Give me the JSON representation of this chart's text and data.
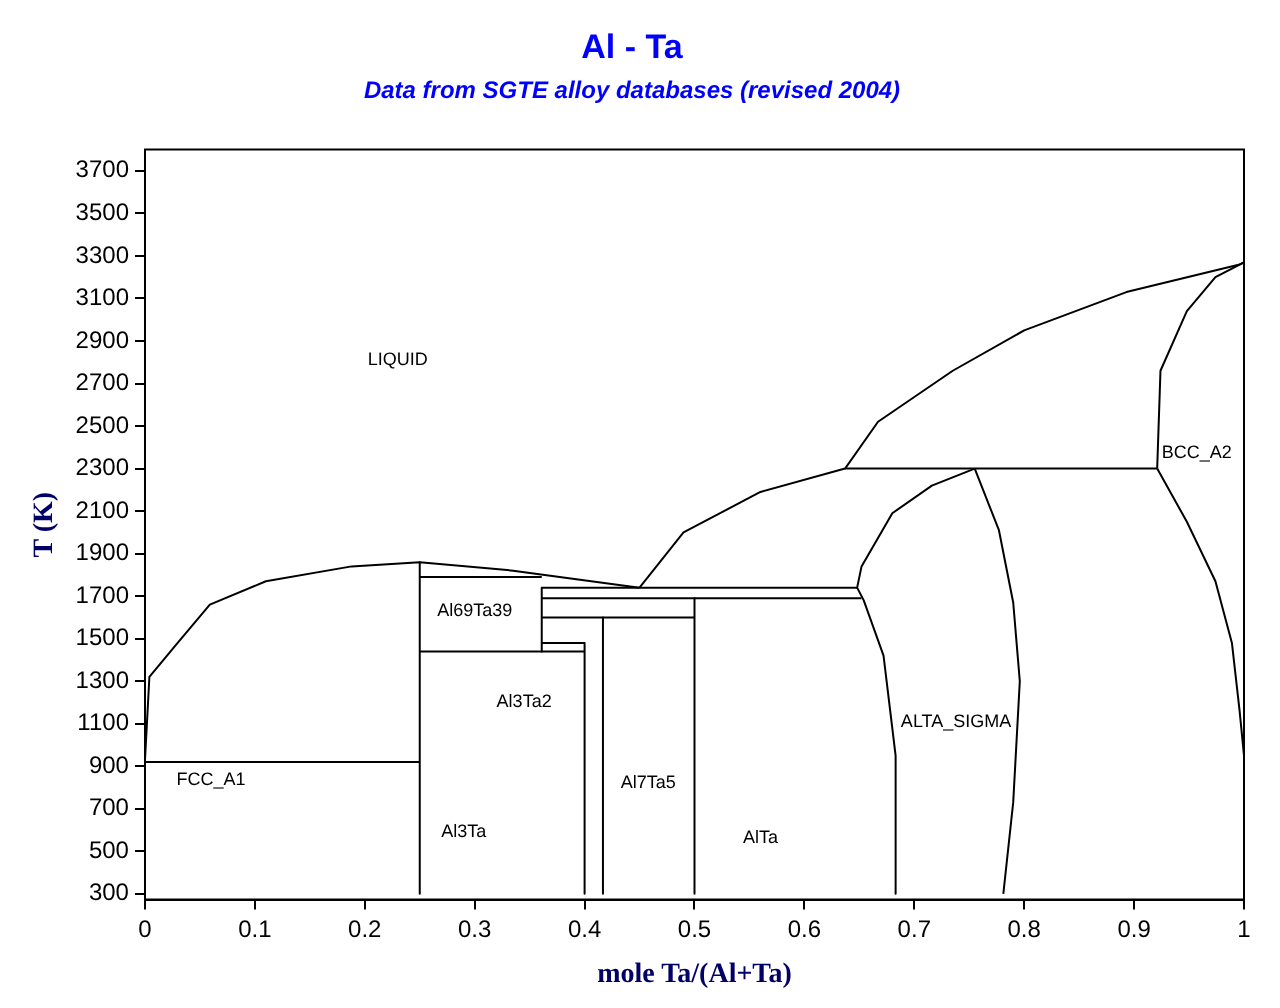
{
  "chart_data": {
    "type": "line",
    "title": "Al - Ta",
    "subtitle": "Data from SGTE alloy databases (revised 2004)",
    "xlabel": "mole Ta/(Al+Ta)",
    "ylabel": "T (K)",
    "xlim": [
      0,
      1
    ],
    "ylim": [
      273,
      3800
    ],
    "xticks": [
      0,
      0.1,
      0.2,
      0.3,
      0.4,
      0.5,
      0.6,
      0.7,
      0.8,
      0.9,
      1
    ],
    "yticks": [
      300,
      500,
      700,
      900,
      1100,
      1300,
      1500,
      1700,
      1900,
      2100,
      2300,
      2500,
      2700,
      2900,
      3100,
      3300,
      3500,
      3700
    ],
    "grid": false,
    "legend": false,
    "marker": "none",
    "line_style": "solid",
    "series": [
      {
        "type": "line",
        "color": "#000000",
        "x": [
          0,
          0.004,
          0.028,
          0.059,
          0.11,
          0.188,
          0.25,
          0.335,
          0.45
        ],
        "values": [
          930,
          1320,
          1470,
          1660,
          1770,
          1840,
          1860,
          1820,
          1740
        ]
      },
      {
        "type": "line",
        "color": "#000000",
        "x": [
          0.45,
          0.49,
          0.56,
          0.637,
          0.667,
          0.735,
          0.8,
          0.893,
          0.996,
          1
        ],
        "values": [
          1740,
          2000,
          2190,
          2300,
          2520,
          2760,
          2950,
          3130,
          3260,
          3270
        ]
      },
      {
        "type": "line",
        "color": "#000000",
        "x": [
          0.637,
          0.921
        ],
        "values": [
          2300,
          2300
        ]
      },
      {
        "type": "line",
        "color": "#000000",
        "x": [
          0.921,
          0.924,
          0.948,
          0.974,
          1
        ],
        "values": [
          2300,
          2760,
          3040,
          3200,
          3270
        ]
      },
      {
        "type": "line",
        "color": "#000000",
        "x": [
          0.921,
          0.948,
          0.974,
          0.989,
          0.996,
          1
        ],
        "values": [
          2300,
          2050,
          1770,
          1480,
          1160,
          950
        ]
      },
      {
        "type": "line",
        "color": "#000000",
        "x": [
          0.755,
          0.716,
          0.68,
          0.652,
          0.648,
          0.654,
          0.672,
          0.683,
          0.683
        ],
        "values": [
          2300,
          2220,
          2090,
          1840,
          1740,
          1680,
          1420,
          950,
          300
        ]
      },
      {
        "type": "line",
        "color": "#000000",
        "x": [
          0.755,
          0.777,
          0.79,
          0.796,
          0.79,
          0.781
        ],
        "values": [
          2300,
          2010,
          1670,
          1300,
          730,
          300
        ]
      },
      {
        "type": "line",
        "color": "#000000",
        "x": [
          0.361,
          0.648
        ],
        "values": [
          1740,
          1740
        ]
      },
      {
        "type": "line",
        "color": "#000000",
        "x": [
          0.361,
          0.652
        ],
        "values": [
          1690,
          1690
        ]
      },
      {
        "type": "line",
        "color": "#000000",
        "x": [
          0.25,
          0.361
        ],
        "values": [
          1790,
          1790
        ]
      },
      {
        "type": "line",
        "color": "#000000",
        "x": [
          0.361,
          0.361
        ],
        "values": [
          1740,
          1440
        ]
      },
      {
        "type": "line",
        "color": "#000000",
        "x": [
          0.25,
          0.4
        ],
        "values": [
          1440,
          1440
        ]
      },
      {
        "type": "line",
        "color": "#000000",
        "x": [
          0.361,
          0.4
        ],
        "values": [
          1480,
          1480
        ]
      },
      {
        "type": "line",
        "color": "#000000",
        "x": [
          0.361,
          0.5
        ],
        "values": [
          1600,
          1600
        ]
      },
      {
        "type": "line",
        "color": "#000000",
        "x": [
          0.25,
          0.25
        ],
        "values": [
          1860,
          300
        ]
      },
      {
        "type": "line",
        "color": "#000000",
        "x": [
          0.4,
          0.4
        ],
        "values": [
          1480,
          300
        ]
      },
      {
        "type": "line",
        "color": "#000000",
        "x": [
          0.4167,
          0.4167
        ],
        "values": [
          1600,
          300
        ]
      },
      {
        "type": "line",
        "color": "#000000",
        "x": [
          0.5,
          0.5
        ],
        "values": [
          1690,
          300
        ]
      },
      {
        "type": "line",
        "color": "#000000",
        "x": [
          0,
          0.25
        ],
        "values": [
          920,
          920
        ]
      }
    ],
    "annotations": [
      "LIQUID",
      "BCC_A2",
      "ALTA_SIGMA",
      "Al69Ta39",
      "Al3Ta2",
      "Al7Ta5",
      "AlTa",
      "Al3Ta",
      "FCC_A1"
    ]
  }
}
